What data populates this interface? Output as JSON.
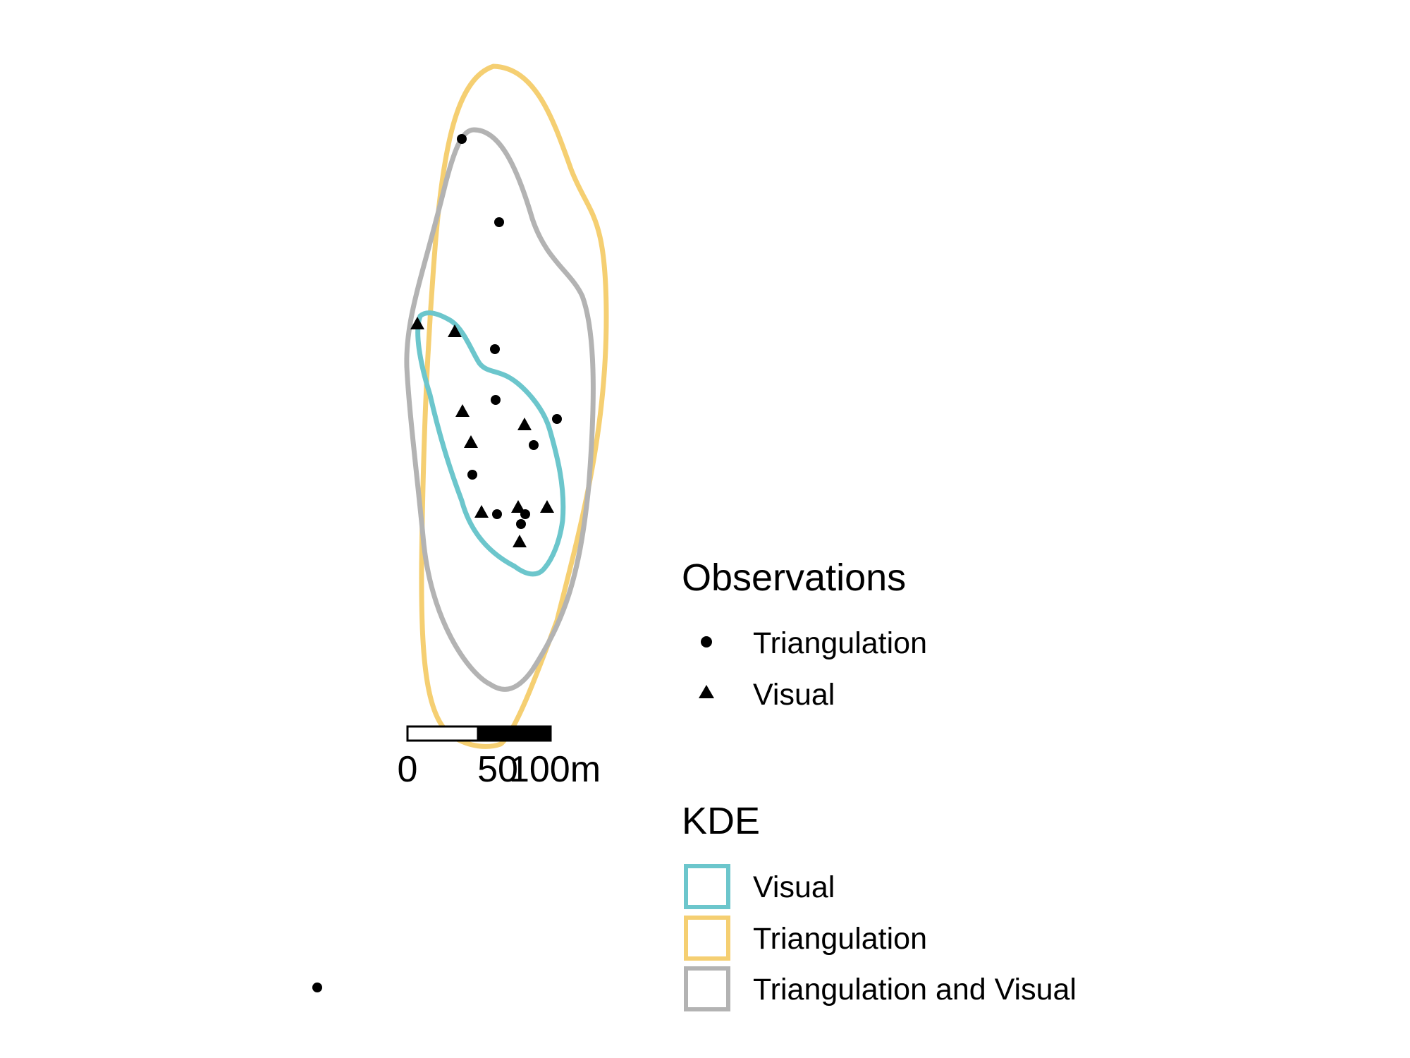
{
  "map": {
    "colors": {
      "visual": "#6cc6cc",
      "triangulation": "#f5cf72",
      "triangulation_and_visual": "#b3b3b3",
      "points": "#000000"
    },
    "scale_bar": {
      "labels": [
        "0",
        "50",
        "100m"
      ],
      "segments": [
        {
          "fill": "#ffffff"
        },
        {
          "fill": "#000000"
        }
      ]
    },
    "legend": {
      "observations": {
        "title": "Observations",
        "items": [
          {
            "label": "Triangulation",
            "symbol": "circle"
          },
          {
            "label": "Visual",
            "symbol": "triangle"
          }
        ]
      },
      "kde": {
        "title": "KDE",
        "items": [
          {
            "label": "Visual",
            "color": "#6cc6cc"
          },
          {
            "label": "Triangulation",
            "color": "#f5cf72"
          },
          {
            "label": "Triangulation and Visual",
            "color": "#b3b3b3"
          }
        ]
      }
    }
  }
}
